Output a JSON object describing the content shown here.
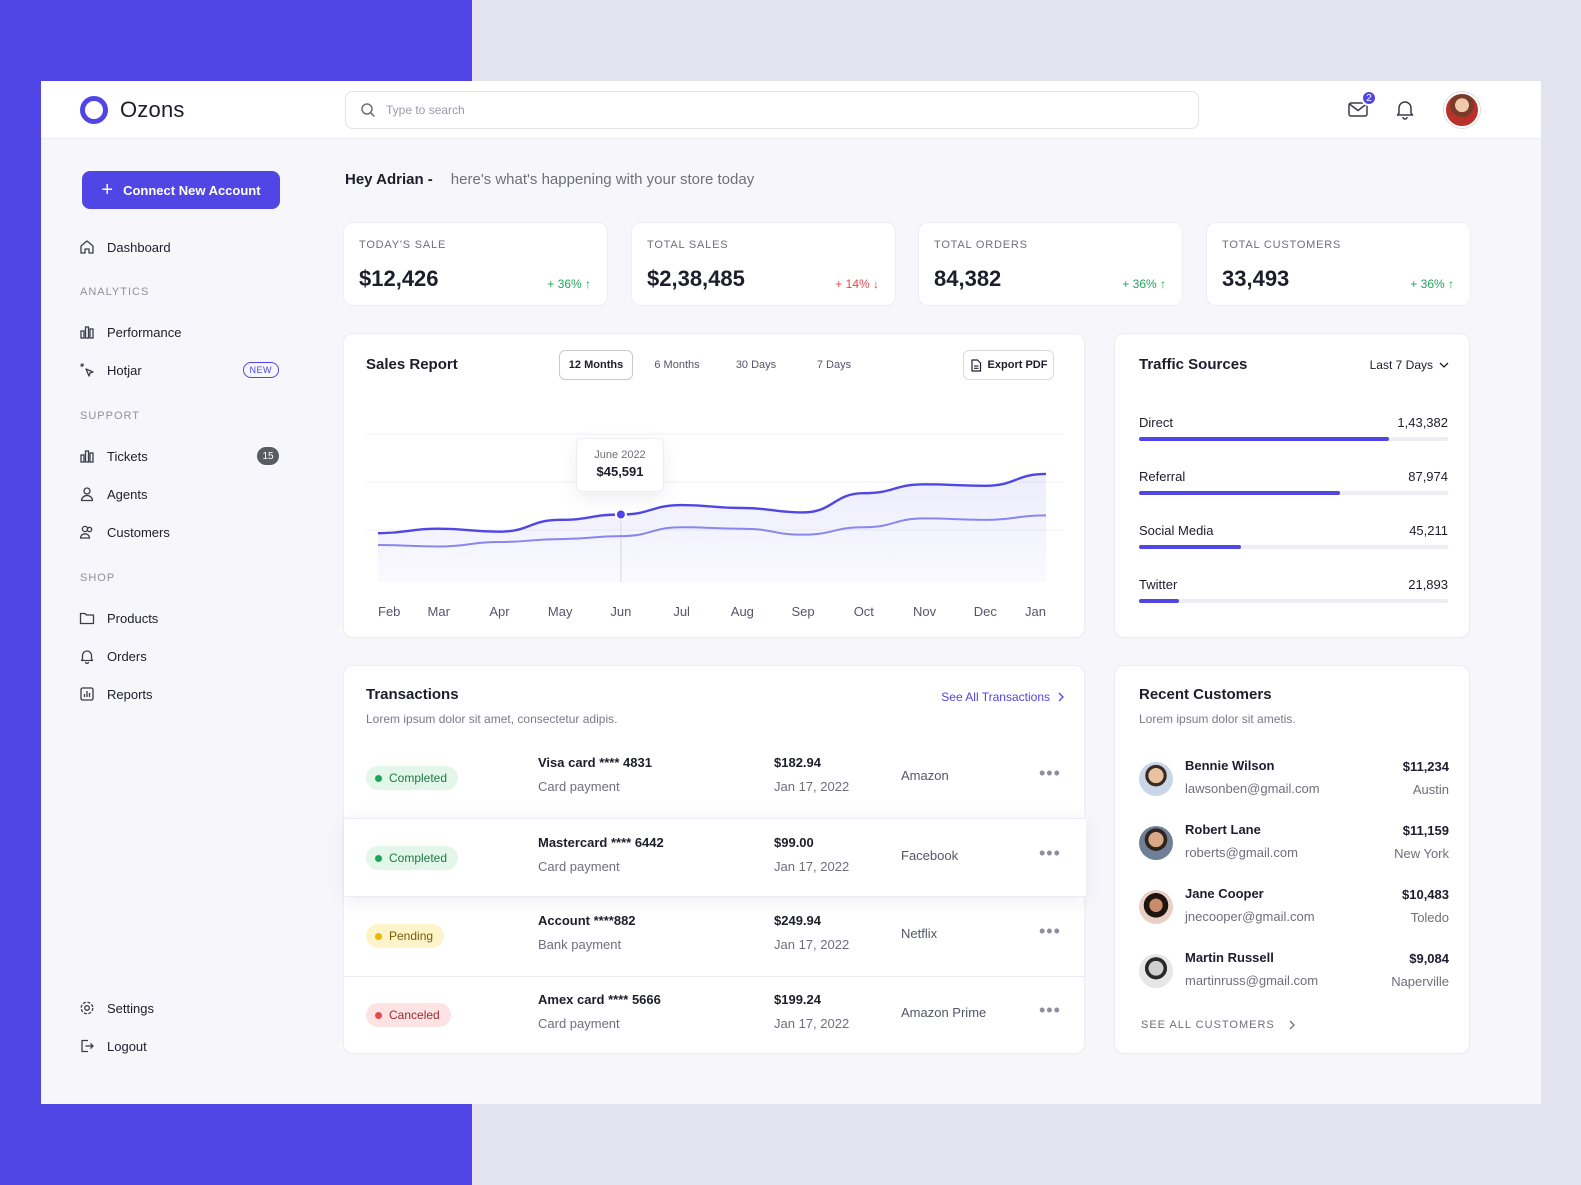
{
  "app": {
    "name": "Ozons"
  },
  "search": {
    "placeholder": "Type to search"
  },
  "header": {
    "mail_badge": "2"
  },
  "sidebar": {
    "connect_label": "Connect New Account",
    "dashboard": "Dashboard",
    "sections": {
      "analytics": "ANALYTICS",
      "support": "SUPPORT",
      "shop": "SHOP"
    },
    "performance": "Performance",
    "hotjar": "Hotjar",
    "hotjar_badge": "NEW",
    "tickets": "Tickets",
    "tickets_count": "15",
    "agents": "Agents",
    "customers": "Customers",
    "products": "Products",
    "orders": "Orders",
    "reports": "Reports",
    "settings": "Settings",
    "logout": "Logout"
  },
  "greeting": {
    "hey": "Hey Adrian -",
    "sub": "here's what's happening with your store today"
  },
  "stats": [
    {
      "label": "TODAY'S SALE",
      "value": "$12,426",
      "change": "+ 36% ↑",
      "trend": "up"
    },
    {
      "label": "TOTAL SALES",
      "value": "$2,38,485",
      "change": "+ 14% ↓",
      "trend": "down"
    },
    {
      "label": "TOTAL ORDERS",
      "value": "84,382",
      "change": "+ 36% ↑",
      "trend": "up"
    },
    {
      "label": "TOTAL CUSTOMERS",
      "value": "33,493",
      "change": "+ 36% ↑",
      "trend": "up"
    }
  ],
  "sales_report": {
    "title": "Sales Report",
    "periods": [
      "12 Months",
      "6 Months",
      "30 Days",
      "7 Days"
    ],
    "active_period": "12 Months",
    "export_label": "Export PDF",
    "tooltip": {
      "date": "June 2022",
      "value": "$45,591"
    }
  },
  "chart_data": {
    "type": "line",
    "categories": [
      "Feb",
      "Mar",
      "Apr",
      "May",
      "Jun",
      "Jul",
      "Aug",
      "Sep",
      "Oct",
      "Nov",
      "Dec",
      "Jan"
    ],
    "series": [
      {
        "values": [
          33,
          36,
          34,
          42,
          45.6,
          52,
          50,
          47,
          60,
          66,
          65,
          73
        ]
      },
      {
        "values": [
          25,
          24,
          27,
          29,
          31,
          37,
          36,
          32,
          37,
          43,
          42,
          45
        ]
      }
    ],
    "ylim": [
      0,
      100
    ],
    "colors": [
      "#4f46e5",
      "#8b85f0"
    ],
    "highlight": {
      "category": "Jun",
      "value": 45.6
    }
  },
  "traffic": {
    "title": "Traffic Sources",
    "range": "Last 7 Days",
    "sources": [
      {
        "name": "Direct",
        "value": "1,43,382",
        "fraction": 0.81
      },
      {
        "name": "Referral",
        "value": "87,974",
        "fraction": 0.65
      },
      {
        "name": "Social Media",
        "value": "45,211",
        "fraction": 0.33
      },
      {
        "name": "Twitter",
        "value": "21,893",
        "fraction": 0.13
      }
    ]
  },
  "transactions": {
    "title": "Transactions",
    "subtitle": "Lorem ipsum dolor sit amet, consectetur adipis.",
    "see_all": "See All Transactions",
    "rows": [
      {
        "status": "Completed",
        "card": "Visa card **** 4831",
        "method": "Card payment",
        "amount": "$182.94",
        "date": "Jan 17, 2022",
        "merchant": "Amazon"
      },
      {
        "status": "Completed",
        "card": "Mastercard **** 6442",
        "method": "Card payment",
        "amount": "$99.00",
        "date": "Jan 17, 2022",
        "merchant": "Facebook"
      },
      {
        "status": "Pending",
        "card": "Account ****882",
        "method": "Bank payment",
        "amount": "$249.94",
        "date": "Jan 17, 2022",
        "merchant": "Netflix"
      },
      {
        "status": "Canceled",
        "card": "Amex card **** 5666",
        "method": "Card payment",
        "amount": "$199.24",
        "date": "Jan 17, 2022",
        "merchant": "Amazon Prime"
      }
    ]
  },
  "customers": {
    "title": "Recent Customers",
    "subtitle": "Lorem ipsum dolor sit ametis.",
    "see_all": "SEE ALL CUSTOMERS",
    "rows": [
      {
        "name": "Bennie Wilson",
        "email": "lawsonben@gmail.com",
        "amount": "$11,234",
        "city": "Austin"
      },
      {
        "name": "Robert Lane",
        "email": "roberts@gmail.com",
        "amount": "$11,159",
        "city": "New York"
      },
      {
        "name": "Jane Cooper",
        "email": "jnecooper@gmail.com",
        "amount": "$10,483",
        "city": "Toledo"
      },
      {
        "name": "Martin Russell",
        "email": "martinruss@gmail.com",
        "amount": "$9,084",
        "city": "Naperville"
      }
    ]
  }
}
